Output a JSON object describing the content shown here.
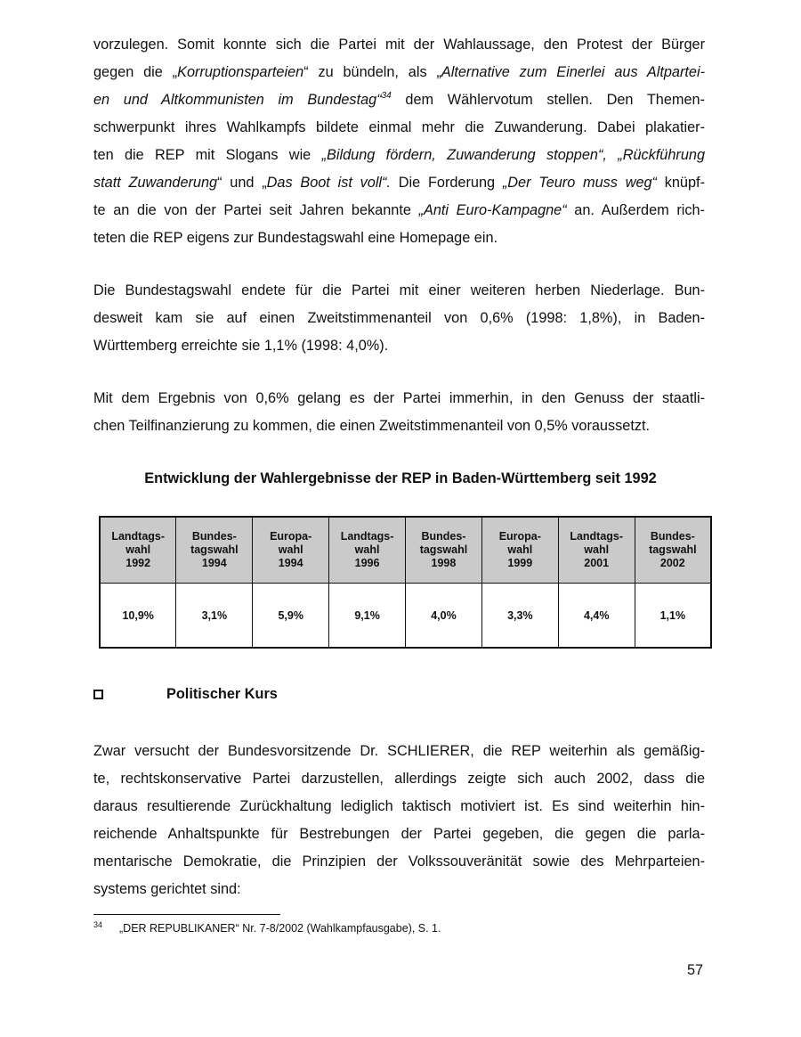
{
  "paragraphs": [
    [
      [
        {
          "t": "vorzulegen. Somit konnte sich die Partei mit der Wahlaussage, den Protest der Bürger"
        }
      ],
      [
        {
          "t": "gegen die „"
        },
        {
          "t": "Korruptionsparteien",
          "i": true
        },
        {
          "t": "“ zu bündeln, als „"
        },
        {
          "t": "Alternative zum Einerlei aus Altpartei-",
          "i": true
        }
      ],
      [
        {
          "t": "en und Altkommunisten im Bundestag“",
          "i": true
        },
        {
          "t": "34",
          "sup": true
        },
        {
          "t": " dem Wählervotum stellen. Den Themen-"
        }
      ],
      [
        {
          "t": "schwerpunkt ihres Wahlkampfs bildete einmal mehr die Zuwanderung. Dabei plakatier-"
        }
      ],
      [
        {
          "t": "ten die REP mit Slogans wie "
        },
        {
          "t": "„Bildung fördern, Zuwanderung stoppen“, „Rückführung",
          "i": true
        }
      ],
      [
        {
          "t": "statt Zuwanderung",
          "i": true
        },
        {
          "t": "“ und „"
        },
        {
          "t": "Das Boot ist voll“.",
          "i": true
        },
        {
          "t": " Die Forderung "
        },
        {
          "t": "„Der Teuro muss weg“",
          "i": true
        },
        {
          "t": " knüpf-"
        }
      ],
      [
        {
          "t": "te an die von der Partei seit Jahren bekannte "
        },
        {
          "t": "„Anti Euro-Kampagne“",
          "i": true
        },
        {
          "t": " an. Außerdem rich-"
        }
      ],
      [
        {
          "t": "teten die REP eigens zur Bundestagswahl eine Homepage ein."
        }
      ]
    ],
    [
      [
        {
          "t": "Die Bundestagswahl endete für die Partei mit einer weiteren herben Niederlage. Bun-"
        }
      ],
      [
        {
          "t": "desweit kam sie auf einen Zweitstimmenanteil von 0,6% (1998: 1,8%), in Baden-"
        }
      ],
      [
        {
          "t": "Württemberg erreichte sie 1,1% (1998: 4,0%)."
        }
      ]
    ],
    [
      [
        {
          "t": "Mit dem Ergebnis von 0,6% gelang es der Partei immerhin, in den Genuss der staatli-"
        }
      ],
      [
        {
          "t": "chen Teilfinanzierung zu kommen, die einen Zweitstimmenanteil von 0,5% voraussetzt."
        }
      ]
    ],
    [
      [
        {
          "t": "Zwar versucht der Bundesvorsitzende Dr. SCHLIERER, die REP weiterhin als gemäßig-"
        }
      ],
      [
        {
          "t": "te, rechtskonservative Partei darzustellen, allerdings zeigte sich auch 2002, dass die"
        }
      ],
      [
        {
          "t": "daraus resultierende Zurückhaltung lediglich taktisch motiviert ist. Es sind weiterhin hin-"
        }
      ],
      [
        {
          "t": "reichende Anhaltspunkte für Bestrebungen der Partei gegeben, die gegen die parla-"
        }
      ],
      [
        {
          "t": "mentarische Demokratie, die Prinzipien der Volkssouveränität sowie des Mehrparteien-"
        }
      ],
      [
        {
          "t": "systems gerichtet sind:"
        }
      ]
    ]
  ],
  "table": {
    "title": "Entwicklung der Wahlergebnisse der REP in Baden-Württemberg seit 1992",
    "columns": [
      {
        "l1": "Landtags-",
        "l2": "wahl",
        "l3": "1992",
        "value": "10,9%"
      },
      {
        "l1": "Bundes-",
        "l2": "tagswahl",
        "l3": "1994",
        "value": "3,1%"
      },
      {
        "l1": "Europa-",
        "l2": "wahl",
        "l3": "1994",
        "value": "5,9%"
      },
      {
        "l1": "Landtags-",
        "l2": "wahl",
        "l3": "1996",
        "value": "9,1%"
      },
      {
        "l1": "Bundes-",
        "l2": "tagswahl",
        "l3": "1998",
        "value": "4,0%"
      },
      {
        "l1": "Europa-",
        "l2": "wahl",
        "l3": "1999",
        "value": "3,3%"
      },
      {
        "l1": "Landtags-",
        "l2": "wahl",
        "l3": "2001",
        "value": "4,4%"
      },
      {
        "l1": "Bundes-",
        "l2": "tagswahl",
        "l3": "2002",
        "value": "1,1%"
      }
    ],
    "header_bg": "#cacaca"
  },
  "section": {
    "icon": "checkbox-bullet-icon",
    "title": "Politischer Kurs"
  },
  "footnote": {
    "number": "34",
    "text": "„DER REPUBLIKANER“ Nr. 7-8/2002 (Wahlkampfausgabe), S. 1."
  },
  "page_number": "57"
}
